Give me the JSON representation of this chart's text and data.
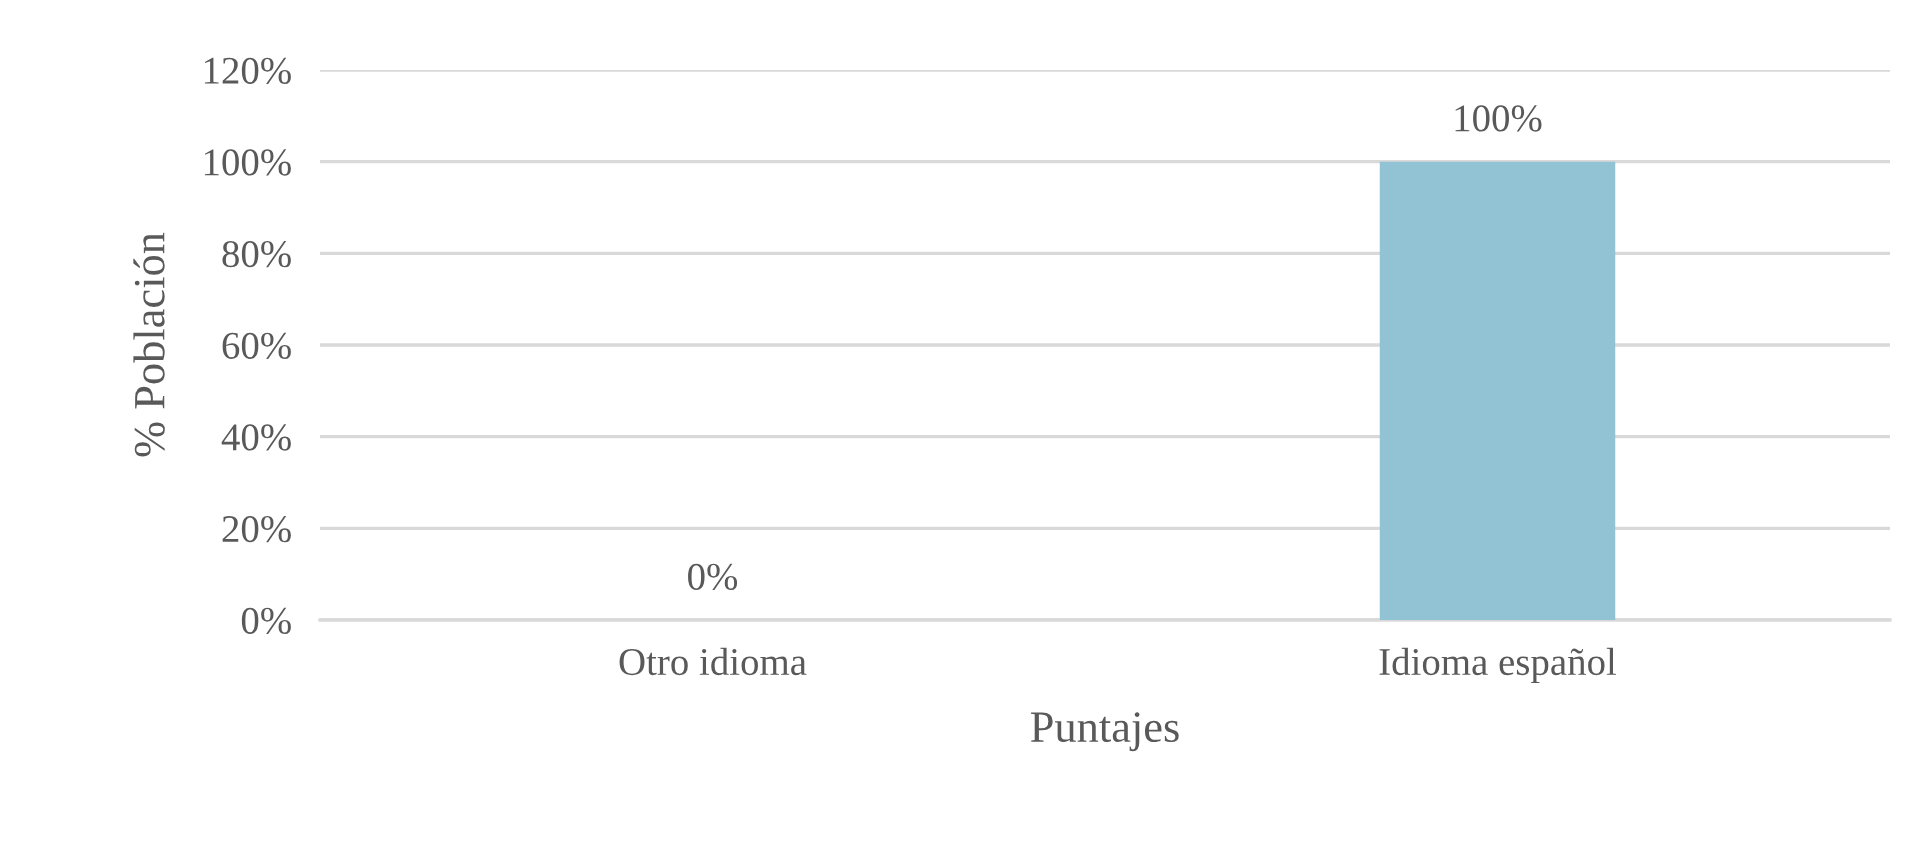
{
  "chart_data": {
    "type": "bar",
    "xlabel": "Puntajes",
    "ylabel": "% Población",
    "categories": [
      "Otro idioma",
      "Idioma español"
    ],
    "values": [
      0,
      100
    ],
    "color": "#92c3d4",
    "value_labels": [
      "0%",
      "100%"
    ],
    "ylim": [
      0,
      120
    ],
    "yticks": [
      {
        "value": 0,
        "label": "0%"
      },
      {
        "value": 20,
        "label": "20%"
      },
      {
        "value": 40,
        "label": "40%"
      },
      {
        "value": 60,
        "label": "60%"
      },
      {
        "value": 80,
        "label": "80%"
      },
      {
        "value": 100,
        "label": "100%"
      },
      {
        "value": 120,
        "label": "120%"
      }
    ],
    "grid": "y"
  }
}
